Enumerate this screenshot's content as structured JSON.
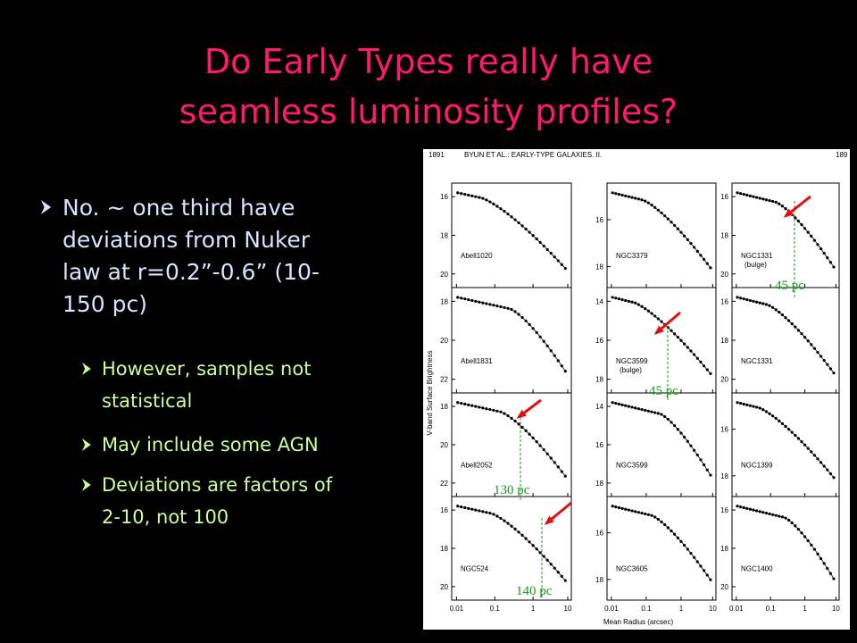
{
  "slide": {
    "title": [
      "Do Early Types really have",
      "seamless luminosity profiles?"
    ],
    "bullet": {
      "lines": [
        "No. ~ one third have",
        "deviations from Nuker",
        "law at r=0.2”-0.6” (10-",
        "150 pc)"
      ]
    },
    "subbullets": [
      {
        "lines": [
          "However, samples not",
          "statistical"
        ]
      },
      {
        "lines": [
          "May include some AGN"
        ]
      },
      {
        "lines": [
          "Deviations are factors of",
          "2-10, not 100"
        ]
      }
    ]
  },
  "figure": {
    "header_left": "1891",
    "header_center": "BYUN ET AL.: EARLY-TYPE GALAXIES. II.",
    "header_right": "189",
    "ylabel": "V-band Surface Brightness",
    "xlabel": "Mean Radius (arcsec)",
    "xticks": [
      "0.01",
      "0.1",
      "1",
      "10"
    ],
    "panels": [
      {
        "name": "Abell1020",
        "yticks": [
          "16",
          "18",
          "20"
        ]
      },
      {
        "name": "NGC3379",
        "yticks": [
          "16",
          "18"
        ]
      },
      {
        "name": "NGC1331",
        "note": "(bulge)",
        "yticks": [
          "16",
          "18",
          "20"
        ]
      },
      {
        "name": "Abell1831",
        "yticks": [
          "18",
          "20",
          "22"
        ]
      },
      {
        "name": "NGC3599",
        "note": "(bulge)",
        "yticks": [
          "14",
          "16",
          "18"
        ]
      },
      {
        "name": "NGC1331",
        "yticks": [
          "16",
          "18",
          "20"
        ]
      },
      {
        "name": "Abell2052",
        "yticks": [
          "18",
          "20",
          "22"
        ]
      },
      {
        "name": "NGC3599",
        "yticks": [
          "14",
          "16",
          "18"
        ]
      },
      {
        "name": "NGC1399",
        "yticks": [
          "16",
          "18"
        ]
      },
      {
        "name": "NGC524",
        "yticks": [
          "16",
          "18",
          "20"
        ]
      },
      {
        "name": "NGC3605",
        "yticks": [
          "16",
          "18"
        ]
      },
      {
        "name": "NGC1400",
        "yticks": [
          "16",
          "18",
          "20"
        ]
      }
    ],
    "annotations": [
      "45 pc",
      "45 pc",
      "130 pc",
      "140 pc"
    ]
  }
}
